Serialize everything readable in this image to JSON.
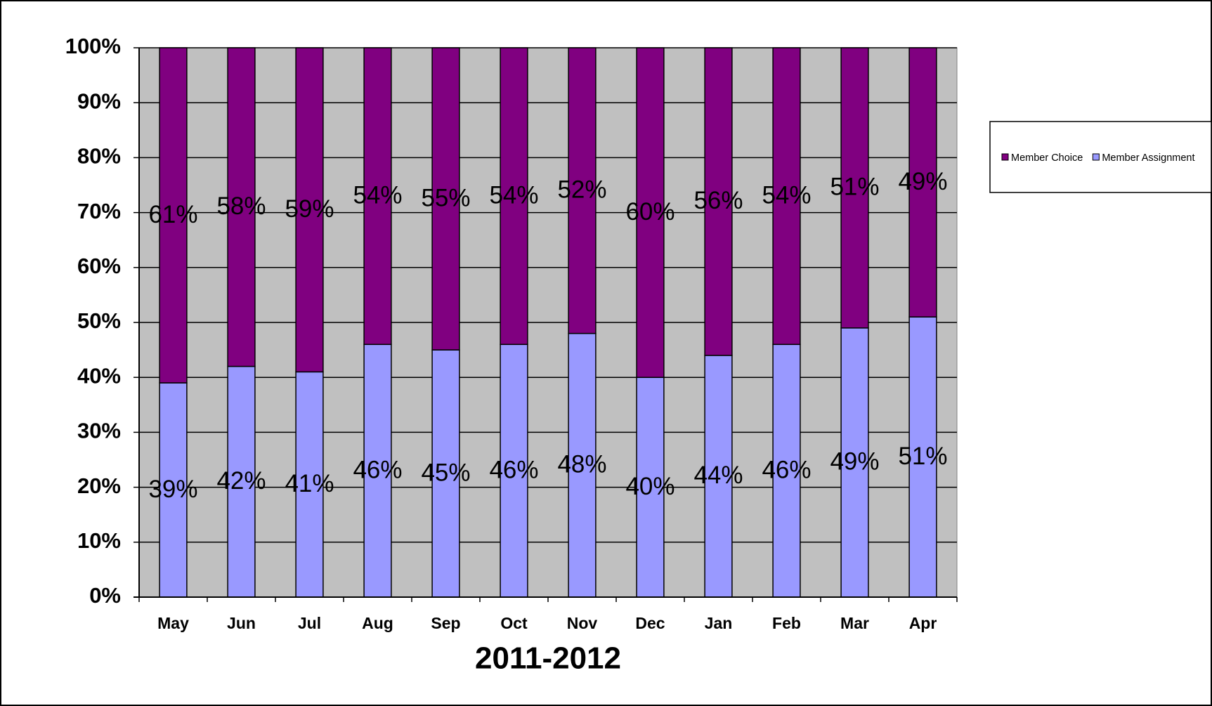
{
  "chart_data": {
    "type": "stacked-bar",
    "x_label": "2011-2012",
    "categories": [
      "May",
      "Jun",
      "Jul",
      "Aug",
      "Sep",
      "Oct",
      "Nov",
      "Dec",
      "Jan",
      "Feb",
      "Mar",
      "Apr"
    ],
    "series": [
      {
        "name": "Member Choice",
        "color": "#800080",
        "values": [
          61,
          58,
          59,
          54,
          55,
          54,
          52,
          60,
          56,
          54,
          51,
          49
        ],
        "value_labels": [
          "61%",
          "58%",
          "59%",
          "54%",
          "55%",
          "54%",
          "52%",
          "60%",
          "56%",
          "54%",
          "51%",
          "49%"
        ]
      },
      {
        "name": "Member Assignment",
        "color": "#9999ff",
        "values": [
          39,
          42,
          41,
          46,
          45,
          46,
          48,
          40,
          44,
          46,
          49,
          51
        ],
        "value_labels": [
          "39%",
          "42%",
          "41%",
          "46%",
          "45%",
          "46%",
          "48%",
          "40%",
          "44%",
          "46%",
          "49%",
          "51%"
        ]
      }
    ],
    "ylim": [
      0,
      100
    ],
    "yticks": [
      {
        "value": 0,
        "label": "0%"
      },
      {
        "value": 10,
        "label": "10%"
      },
      {
        "value": 20,
        "label": "20%"
      },
      {
        "value": 30,
        "label": "30%"
      },
      {
        "value": 40,
        "label": "40%"
      },
      {
        "value": 50,
        "label": "50%"
      },
      {
        "value": 60,
        "label": "60%"
      },
      {
        "value": 70,
        "label": "70%"
      },
      {
        "value": 80,
        "label": "80%"
      },
      {
        "value": 90,
        "label": "90%"
      },
      {
        "value": 100,
        "label": "100%"
      }
    ],
    "grid": true,
    "legend": "right",
    "plot_background": "#c0c0c0"
  }
}
